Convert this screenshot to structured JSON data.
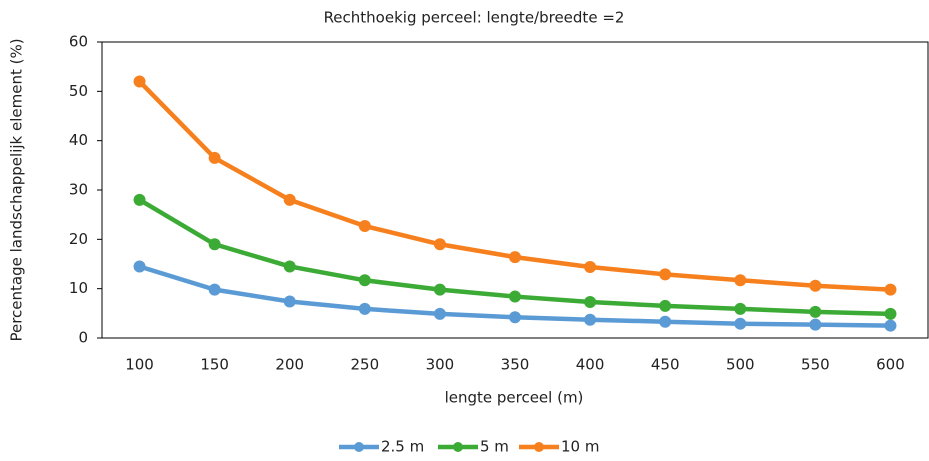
{
  "chart_data": {
    "type": "line",
    "title": "Rechthoekig perceel: lengte/breedte =2",
    "x_label": "lengte perceel (m)",
    "y_label": "Percentage landschappelijk element (%)",
    "categories": [
      "100",
      "150",
      "200",
      "250",
      "300",
      "350",
      "400",
      "450",
      "500",
      "550",
      "600"
    ],
    "series": [
      {
        "name": "2.5 m",
        "color": "#5b9bd5",
        "values": [
          14.5,
          9.8,
          7.4,
          5.9,
          4.9,
          4.2,
          3.7,
          3.3,
          2.9,
          2.7,
          2.5
        ]
      },
      {
        "name": "5 m",
        "color": "#3cab36",
        "values": [
          28,
          19,
          14.5,
          11.7,
          9.8,
          8.4,
          7.3,
          6.5,
          5.9,
          5.3,
          4.9
        ]
      },
      {
        "name": "10 m",
        "color": "#f7801e",
        "values": [
          52,
          36.5,
          28,
          22.7,
          19,
          16.4,
          14.4,
          12.9,
          11.7,
          10.6,
          9.8
        ]
      }
    ],
    "ylim": [
      0,
      60
    ],
    "yticks": [
      0,
      10,
      20,
      30,
      40,
      50,
      60
    ],
    "grid": false,
    "legend": "bottom"
  }
}
